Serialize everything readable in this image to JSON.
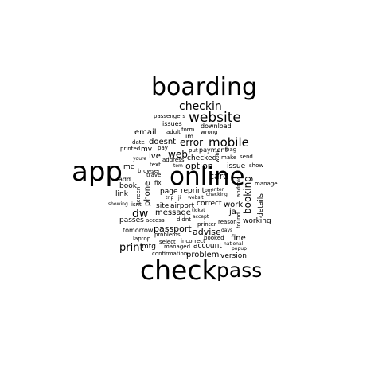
{
  "words": [
    "boarding",
    "checkin",
    "website",
    "passengers",
    "issues",
    "download",
    "adult",
    "form",
    "wrong",
    "email",
    "im",
    "mobile",
    "date",
    "doesnt",
    "error",
    "printed",
    "mv",
    "pay",
    "put",
    "payment",
    "bag",
    "youre",
    "ive",
    "address",
    "checked",
    "make",
    "send",
    "text",
    "tom",
    "option",
    "issue",
    "show",
    "mc",
    "web",
    "card",
    "app",
    "online",
    "browser",
    "fix",
    "add",
    "book",
    "page",
    "reprint",
    "manage",
    "enter",
    "checking",
    "link",
    "dw",
    "phone",
    "find",
    "site",
    "airport",
    "work",
    "showing",
    "isnt",
    "ticket",
    "message",
    "ja",
    "passes",
    "access",
    "accept",
    "printer",
    "reason",
    "working",
    "tomorrow",
    "passport",
    "advise",
    "days",
    "problems",
    "booked",
    "fine",
    "laptop",
    "select",
    "incorrect",
    "national",
    "mtg",
    "managed",
    "account",
    "popup",
    "print",
    "confirmation",
    "problem",
    "version",
    "check",
    "pass",
    "correct",
    "booking",
    "details",
    "travel",
    "trip",
    "ji",
    "websit",
    "didnt",
    "wont",
    "screen",
    "android",
    "found",
    "pm"
  ]
}
